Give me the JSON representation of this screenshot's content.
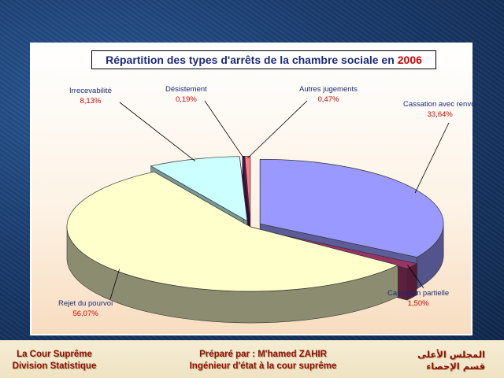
{
  "chart_data": {
    "type": "pie",
    "title": "Répartition des types d'arrêts de la chambre sociale en",
    "title_year": "2006",
    "slices": [
      {
        "label": "Cassation avec renvoi",
        "value": 33.64,
        "display": "33,64%",
        "color": "#9999ff",
        "exploded": true
      },
      {
        "label": "Cassation partielle",
        "value": 1.5,
        "display": "1,50%",
        "color": "#993366",
        "exploded": true
      },
      {
        "label": "Rejet du pourvoi",
        "value": 56.07,
        "display": "56,07%",
        "color": "#ffffcc",
        "exploded": false
      },
      {
        "label": "Irrecevabilité",
        "value": 8.13,
        "display": "8,13%",
        "color": "#ccffff",
        "exploded": true
      },
      {
        "label": "Désistement",
        "value": 0.19,
        "display": "0,19%",
        "color": "#660066",
        "exploded": true
      },
      {
        "label": "Autres jugements",
        "value": 0.47,
        "display": "0,47%",
        "color": "#ff8080",
        "exploded": true
      }
    ],
    "legend": "none",
    "style": "3d-exploded"
  },
  "footer": {
    "left_line1": "La Cour Suprême",
    "left_line2": "Division Statistique",
    "center_line1": "Préparé par : M'hamed ZAHIR",
    "center_line2": "Ingénieur d'état à la cour suprême",
    "right_line1": "المجلس الأعلى",
    "right_line2": "قسم الإحصاء"
  }
}
